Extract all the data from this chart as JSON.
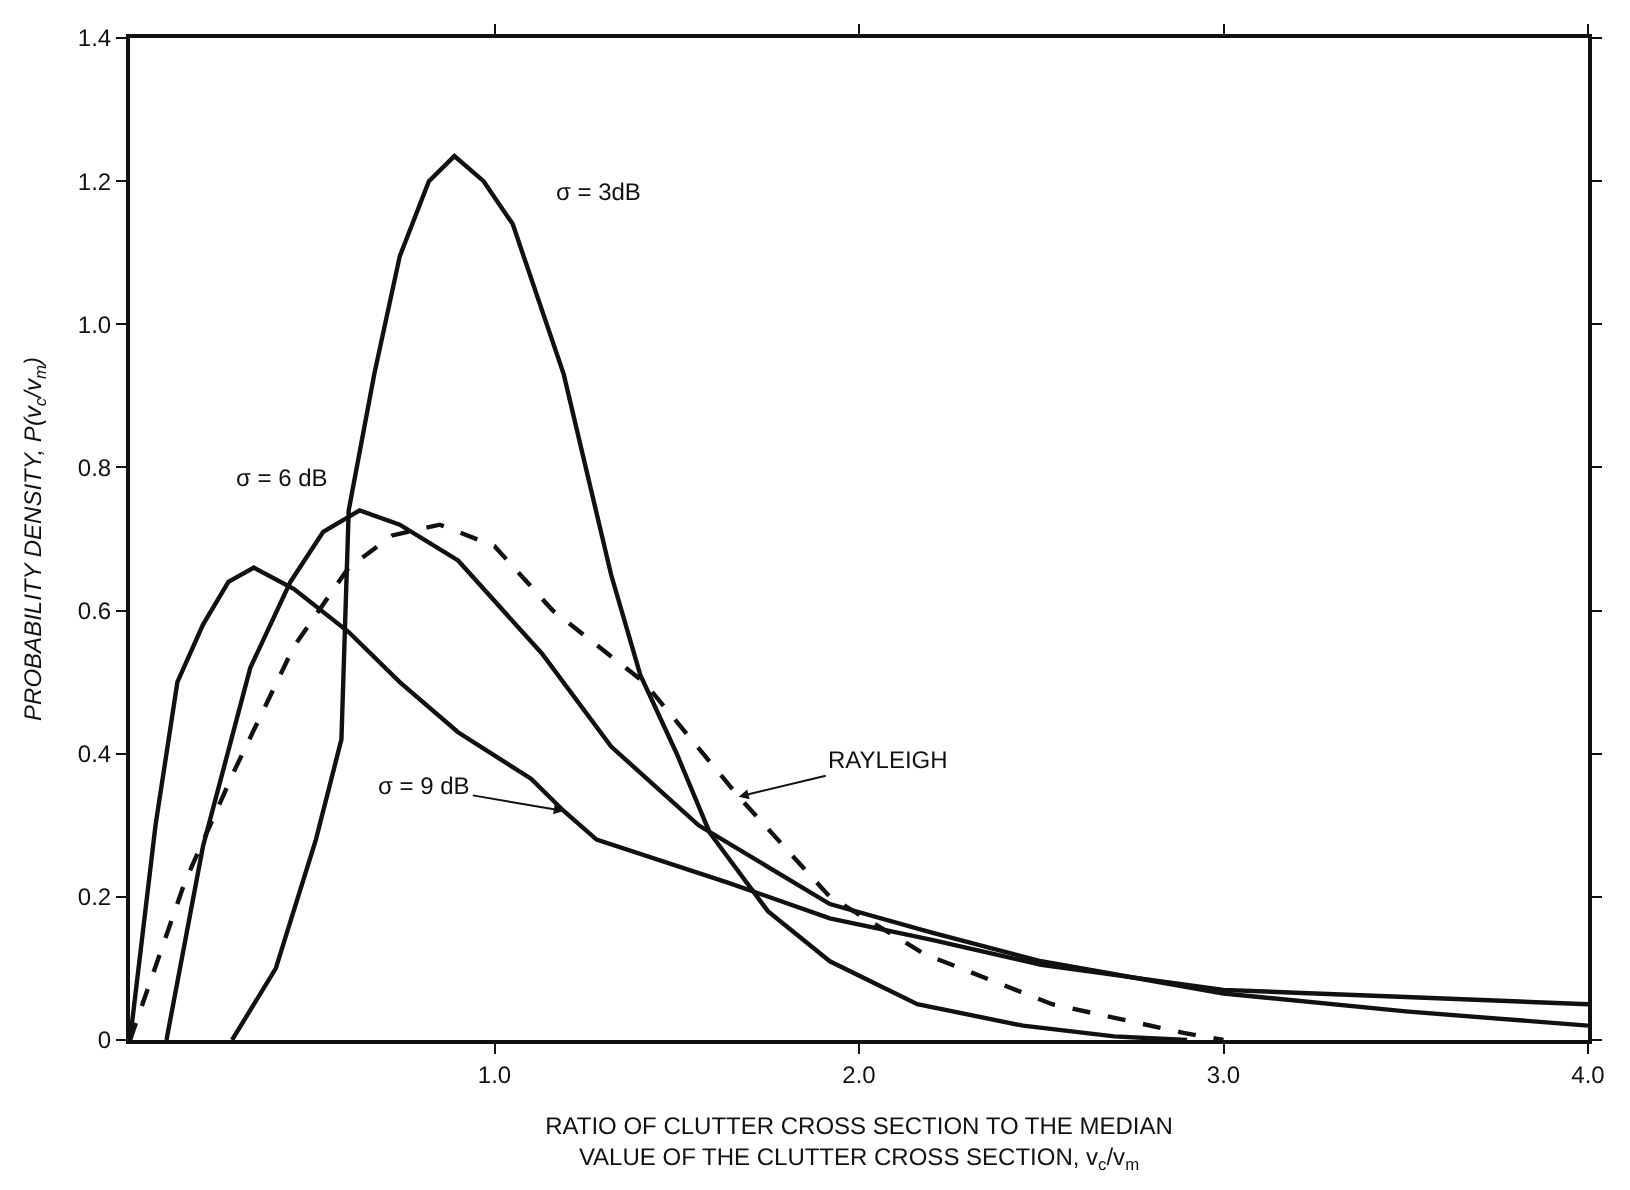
{
  "chart_data": {
    "type": "line",
    "xlabel": "RATIO OF CLUTTER CROSS SECTION TO THE MEDIAN\nVALUE OF THE CLUTTER CROSS SECTION, v$_{c}$/v$_{m}$",
    "ylabel": "PROBABILITY DENSITY, P(v$_{c}$/v$_{m}$)",
    "xlim": [
      0,
      4.0
    ],
    "ylim": [
      0,
      1.4
    ],
    "xticks": [
      {
        "value": 1.0,
        "label": "1.0"
      },
      {
        "value": 2.0,
        "label": "2.0"
      },
      {
        "value": 3.0,
        "label": "3.0"
      },
      {
        "value": 4.0,
        "label": "4.0"
      }
    ],
    "yticks": [
      {
        "value": 0,
        "label": "0"
      },
      {
        "value": 0.2,
        "label": "0.2"
      },
      {
        "value": 0.4,
        "label": "0.4"
      },
      {
        "value": 0.6,
        "label": "0.6"
      },
      {
        "value": 0.8,
        "label": "0.8"
      },
      {
        "value": 1.0,
        "label": "1.0"
      },
      {
        "value": 1.2,
        "label": "1.2"
      },
      {
        "value": 1.4,
        "label": "1.4"
      }
    ],
    "marker": "none",
    "series": [
      {
        "color": "#111111",
        "line_style": "solid",
        "x": [
          0.28,
          0.4,
          0.51,
          0.58,
          0.6,
          0.67,
          0.74,
          0.82,
          0.89,
          0.97,
          1.05,
          1.19,
          1.32,
          1.4,
          1.5,
          1.59,
          1.75,
          1.92,
          2.16,
          2.45,
          2.7,
          2.9
        ],
        "values": [
          0,
          0.1,
          0.28,
          0.42,
          0.74,
          0.93,
          1.095,
          1.2,
          1.235,
          1.2,
          1.14,
          0.93,
          0.65,
          0.51,
          0.4,
          0.29,
          0.18,
          0.11,
          0.05,
          0.02,
          0.005,
          0
        ]
      },
      {
        "color": "#111111",
        "line_style": "solid",
        "x": [
          0.1,
          0.2,
          0.33,
          0.44,
          0.53,
          0.63,
          0.74,
          0.9,
          1.13,
          1.32,
          1.56,
          1.92,
          2.2,
          2.5,
          3.0,
          3.5,
          4.0
        ],
        "values": [
          0,
          0.27,
          0.52,
          0.64,
          0.71,
          0.74,
          0.72,
          0.67,
          0.54,
          0.41,
          0.3,
          0.19,
          0.15,
          0.11,
          0.065,
          0.04,
          0.02
        ]
      },
      {
        "color": "#111111",
        "line_style": "solid",
        "x": [
          0,
          0.07,
          0.13,
          0.2,
          0.27,
          0.34,
          0.45,
          0.6,
          0.74,
          0.9,
          1.1,
          1.19,
          1.28,
          1.64,
          1.92,
          2.2,
          2.5,
          3.0,
          3.5,
          4.0
        ],
        "values": [
          0,
          0.3,
          0.5,
          0.58,
          0.64,
          0.66,
          0.63,
          0.57,
          0.5,
          0.43,
          0.365,
          0.32,
          0.28,
          0.22,
          0.17,
          0.14,
          0.105,
          0.07,
          0.06,
          0.05
        ]
      },
      {
        "color": "#111111",
        "line_style": "dashed",
        "x": [
          0,
          0.15,
          0.285,
          0.45,
          0.6,
          0.72,
          0.85,
          1.0,
          1.16,
          1.41,
          1.67,
          1.92,
          2.18,
          2.53,
          2.89,
          3.0
        ],
        "values": [
          0,
          0.22,
          0.375,
          0.55,
          0.66,
          0.705,
          0.72,
          0.69,
          0.6,
          0.5,
          0.34,
          0.2,
          0.12,
          0.05,
          0.01,
          0
        ]
      }
    ],
    "annotations": [
      "σ = 3dB",
      "σ = 6 dB",
      {
        "text": "σ = 9 dB",
        "x": 1.19,
        "y": 0.32
      },
      {
        "text": "RAYLEIGH",
        "x": 1.67,
        "y": 0.34
      }
    ]
  }
}
